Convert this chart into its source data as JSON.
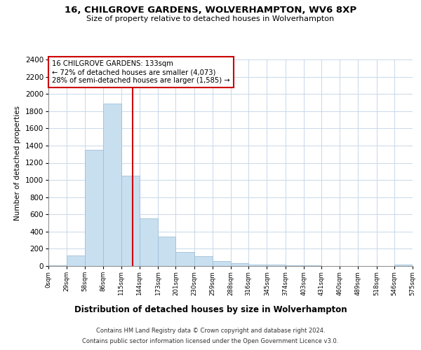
{
  "title": "16, CHILGROVE GARDENS, WOLVERHAMPTON, WV6 8XP",
  "subtitle": "Size of property relative to detached houses in Wolverhampton",
  "xlabel": "Distribution of detached houses by size in Wolverhampton",
  "ylabel": "Number of detached properties",
  "bar_edges": [
    0,
    29,
    58,
    86,
    115,
    144,
    173,
    201,
    230,
    259,
    288,
    316,
    345,
    374,
    403,
    431,
    460,
    489,
    518,
    546,
    575
  ],
  "bar_heights": [
    10,
    125,
    1350,
    1890,
    1050,
    550,
    340,
    160,
    110,
    60,
    30,
    20,
    15,
    10,
    5,
    0,
    0,
    0,
    0,
    20
  ],
  "bar_color": "#c8dff0",
  "bar_edge_color": "#a0bfd8",
  "vline_x": 133,
  "vline_color": "#cc0000",
  "annotation_title": "16 CHILGROVE GARDENS: 133sqm",
  "annotation_line1": "← 72% of detached houses are smaller (4,073)",
  "annotation_line2": "28% of semi-detached houses are larger (1,585) →",
  "annotation_box_color": "#ffffff",
  "annotation_box_edge": "#cc0000",
  "ylim": [
    0,
    2400
  ],
  "yticks": [
    0,
    200,
    400,
    600,
    800,
    1000,
    1200,
    1400,
    1600,
    1800,
    2000,
    2200,
    2400
  ],
  "xtick_labels": [
    "0sqm",
    "29sqm",
    "58sqm",
    "86sqm",
    "115sqm",
    "144sqm",
    "173sqm",
    "201sqm",
    "230sqm",
    "259sqm",
    "288sqm",
    "316sqm",
    "345sqm",
    "374sqm",
    "403sqm",
    "431sqm",
    "460sqm",
    "489sqm",
    "518sqm",
    "546sqm",
    "575sqm"
  ],
  "footer_line1": "Contains HM Land Registry data © Crown copyright and database right 2024.",
  "footer_line2": "Contains public sector information licensed under the Open Government Licence v3.0.",
  "background_color": "#ffffff",
  "grid_color": "#c8d8e8"
}
